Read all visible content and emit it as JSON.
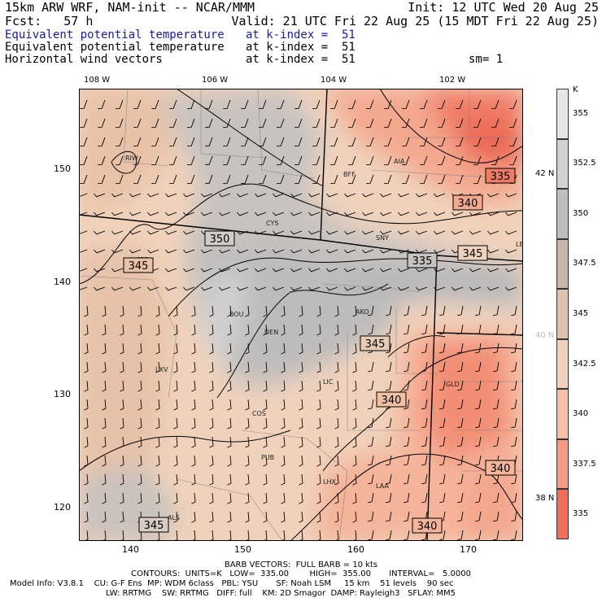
{
  "header": {
    "model": "15km ARW WRF, NAM-init -- NCAR/MMM",
    "init": "Init: 12 UTC Wed 20 Aug 25",
    "fcst": "Fcst:   57 h",
    "valid": "Valid: 21 UTC Fri 22 Aug 25 (15 MDT Fri 22 Aug 25)",
    "fields": [
      {
        "name": "Equivalent potential temperature",
        "level": "at k-index =  51",
        "color": "#1a1a9e"
      },
      {
        "name": "Equivalent potential temperature",
        "level": "at k-index =  51",
        "color": "#000000"
      },
      {
        "name": "Horizontal wind vectors",
        "level": "at k-index =  51",
        "color": "#000000"
      }
    ],
    "smoothing": "sm= 1"
  },
  "top_ticks": [
    "108 W",
    "106 W",
    "104 W",
    "102 W"
  ],
  "left_ticks": [
    "150",
    "140",
    "130",
    "120"
  ],
  "bottom_ticks": [
    "140",
    "150",
    "160",
    "170"
  ],
  "right_lat_ticks": [
    "42 N",
    "40 N",
    "38 N"
  ],
  "colorbar": {
    "unit": "K",
    "labels": [
      "355",
      "352.5",
      "350",
      "347.5",
      "345",
      "342.5",
      "340",
      "337.5",
      "335"
    ],
    "colors": [
      "#e6e6e6",
      "#d2d2d2",
      "#bebebe",
      "#c8b6aa",
      "#dcc3b0",
      "#f0d2bc",
      "#f6c0a6",
      "#f69a84",
      "#f06e5a"
    ]
  },
  "map": {
    "stations": [
      "RIW",
      "BFF",
      "AIA",
      "CYS",
      "SNY",
      "LBF",
      "CPR",
      "BOU",
      "DEN",
      "AKO",
      "LXV",
      "LIC",
      "GLD",
      "COS",
      "PUB",
      "LHX",
      "LAA",
      "ALS"
    ],
    "contour_labels": [
      "335",
      "340",
      "345",
      "350",
      "335",
      "340",
      "345",
      "350",
      "345",
      "340",
      "340",
      "345",
      "340"
    ]
  },
  "footer": {
    "barbs": "BARB VECTORS:  FULL BARB = 10 kts",
    "contours": "CONTOURS:  UNITS=K   LOW=  335.00        HIGH=  355.00       INTERVAL=   5.0000",
    "model_info_1": "Model Info: V3.8.1    CU: G-F Ens  MP: WDM 6class   PBL: YSU       SF: Noah LSM     15 km    51 levels    90 sec",
    "model_info_2": "LW: RRTMG    SW: RRTMG   DIFF: full    KM: 2D Smagor  DAMP: Rayleigh3   SFLAY: MM5"
  }
}
